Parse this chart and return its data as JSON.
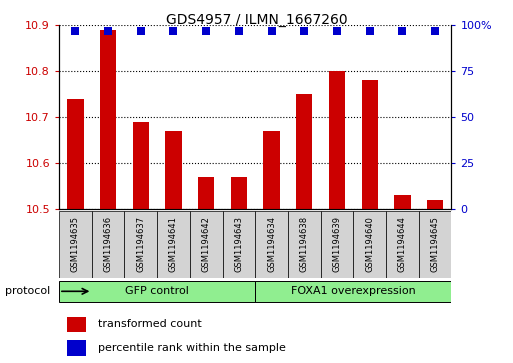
{
  "title": "GDS4957 / ILMN_1667260",
  "samples": [
    "GSM1194635",
    "GSM1194636",
    "GSM1194637",
    "GSM1194641",
    "GSM1194642",
    "GSM1194643",
    "GSM1194634",
    "GSM1194638",
    "GSM1194639",
    "GSM1194640",
    "GSM1194644",
    "GSM1194645"
  ],
  "bar_values": [
    10.74,
    10.89,
    10.69,
    10.67,
    10.57,
    10.57,
    10.67,
    10.75,
    10.8,
    10.78,
    10.53,
    10.52
  ],
  "percentile_values": [
    97,
    97,
    97,
    97,
    97,
    97,
    97,
    97,
    97,
    97,
    97,
    97
  ],
  "bar_color": "#cc0000",
  "dot_color": "#0000cc",
  "ylim_left": [
    10.5,
    10.9
  ],
  "ylim_right": [
    0,
    100
  ],
  "yticks_left": [
    10.5,
    10.6,
    10.7,
    10.8,
    10.9
  ],
  "yticks_right": [
    0,
    25,
    50,
    75,
    100
  ],
  "groups": [
    {
      "label": "GFP control",
      "start": 0,
      "end": 6,
      "color": "#90ee90"
    },
    {
      "label": "FOXA1 overexpression",
      "start": 6,
      "end": 12,
      "color": "#90ee90"
    }
  ],
  "protocol_label": "protocol",
  "legend_bar_label": "transformed count",
  "legend_dot_label": "percentile rank within the sample",
  "label_color_left": "#cc0000",
  "label_color_right": "#0000cc",
  "bar_width": 0.5,
  "dot_size": 30,
  "sample_box_color": "#d3d3d3"
}
